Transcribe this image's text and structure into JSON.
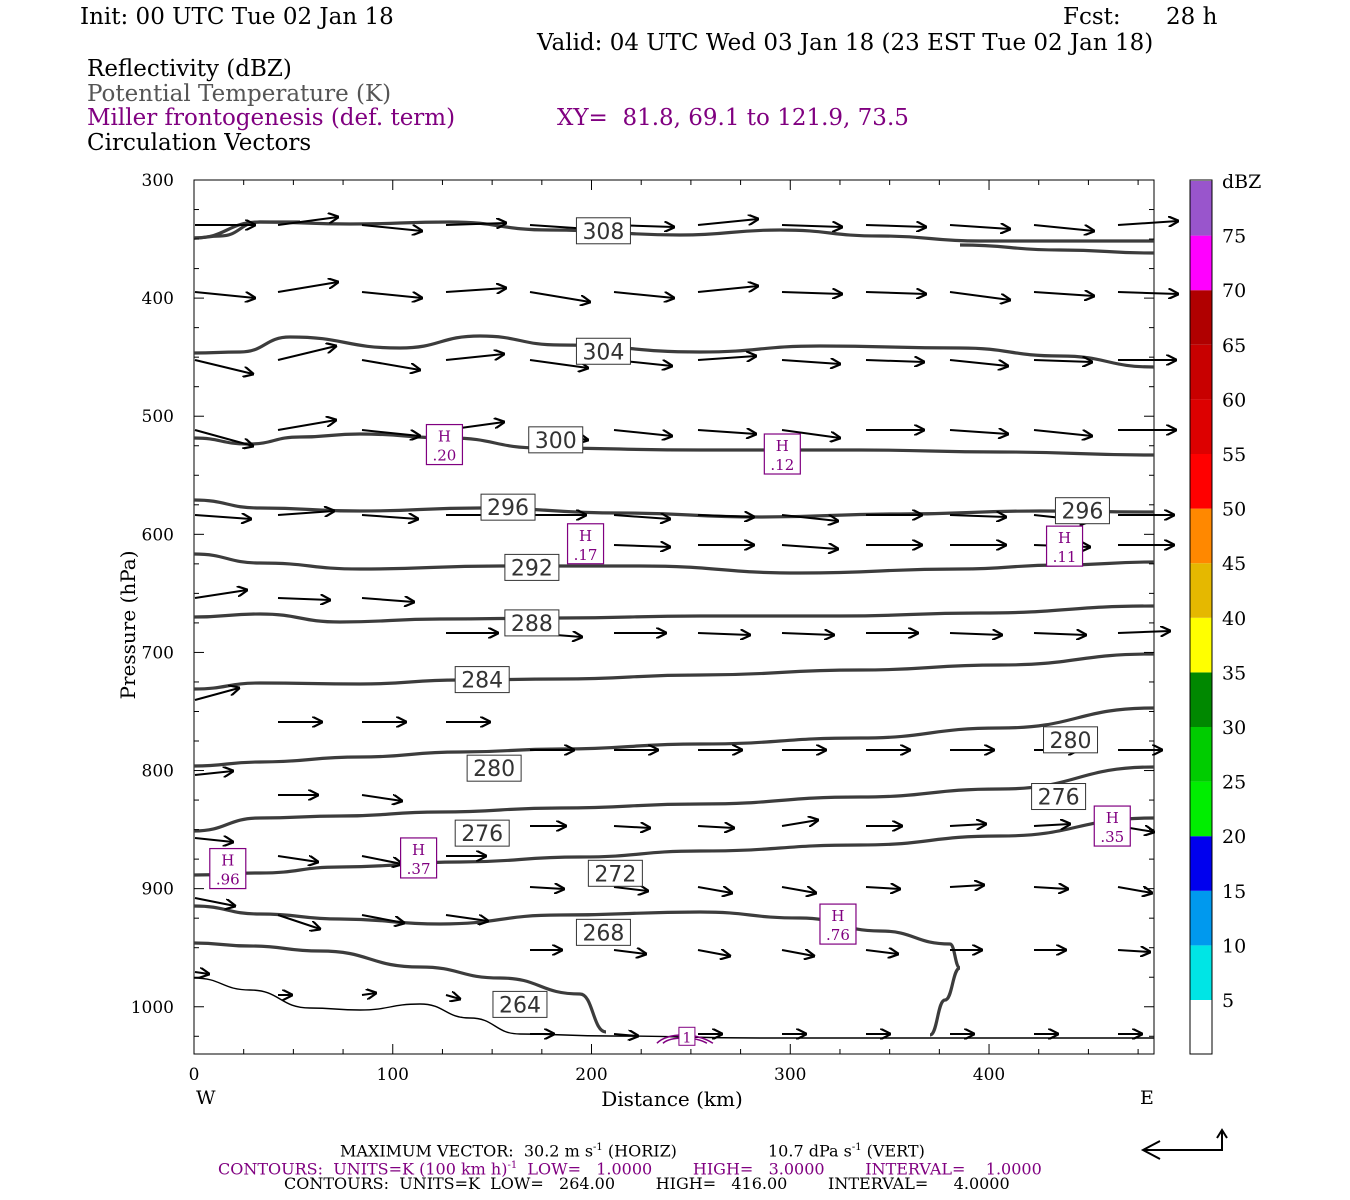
{
  "header": {
    "init": "Init: 00 UTC Tue 02 Jan 18",
    "fcst_label": "Fcst:",
    "fcst_value": "28 h",
    "valid": "Valid: 04 UTC Wed 03 Jan 18 (23 EST Tue 02 Jan 18)"
  },
  "legend_text": {
    "reflectivity": "Reflectivity (dBZ)",
    "theta": "Potential Temperature (K)",
    "frontogenesis": "Miller frontogenesis (def. term)",
    "xy": "XY=  81.8, 69.1 to 121.9, 73.5",
    "vectors": "Circulation Vectors"
  },
  "footer": {
    "max_vector": "MAXIMUM VECTOR:  30.2 m s",
    "max_vector_sup": "-1",
    "max_vector_horiz": " (HORIZ)",
    "max_vector_vert": "10.7 dPa s",
    "max_vector_vert_sup": "-1",
    "max_vector_vert_tail": " (VERT)",
    "contours1_a": "CONTOURS:  UNITS=K (100 km h)",
    "contours1_sup": "-1",
    "contours1_b": "  LOW=   1.0000        HIGH=   3.0000        INTERVAL=    1.0000",
    "contours2": "CONTOURS:  UNITS=K  LOW=   264.00        HIGH=   416.00        INTERVAL=     4.0000"
  },
  "colors": {
    "theta_line": "#3c3c3c",
    "fronto": "#800080"
  },
  "chart_data": {
    "type": "cross-section",
    "xlabel": "Distance (km)",
    "ylabel": "Pressure (hPa)",
    "xlim": [
      0,
      483
    ],
    "ylim": [
      1040,
      300
    ],
    "y_scale": "linear, inverted",
    "x_ticks": [
      "0",
      "100",
      "200",
      "300",
      "400"
    ],
    "y_ticks": [
      "300",
      "400",
      "500",
      "600",
      "700",
      "800",
      "900",
      "1000"
    ],
    "x_ends": {
      "left": "W",
      "right": "E"
    },
    "colorbar": {
      "unit": "dBZ",
      "labels": [
        "5",
        "10",
        "15",
        "20",
        "25",
        "30",
        "35",
        "40",
        "45",
        "50",
        "55",
        "60",
        "65",
        "70",
        "75"
      ],
      "colors": [
        "#00e5e5",
        "#0099ee",
        "#0000ee",
        "#00ee00",
        "#00cc00",
        "#008800",
        "#ffff00",
        "#e5b800",
        "#ff8800",
        "#ff0000",
        "#dd0000",
        "#c80000",
        "#b00000",
        "#ff00ff",
        "#9955cc"
      ]
    },
    "theta_labels": [
      {
        "text": "308",
        "x": 206,
        "p": 343
      },
      {
        "text": "304",
        "x": 206,
        "p": 445
      },
      {
        "text": "300",
        "x": 182,
        "p": 520
      },
      {
        "text": "296",
        "x": 158,
        "p": 577
      },
      {
        "text": "296",
        "x": 447,
        "p": 580
      },
      {
        "text": "292",
        "x": 170,
        "p": 628
      },
      {
        "text": "288",
        "x": 170,
        "p": 675
      },
      {
        "text": "284",
        "x": 145,
        "p": 723
      },
      {
        "text": "280",
        "x": 441,
        "p": 774
      },
      {
        "text": "280",
        "x": 151,
        "p": 798
      },
      {
        "text": "276",
        "x": 435,
        "p": 822
      },
      {
        "text": "276",
        "x": 145,
        "p": 853
      },
      {
        "text": "272",
        "x": 212,
        "p": 887
      },
      {
        "text": "268",
        "x": 206,
        "p": 937
      },
      {
        "text": "264",
        "x": 164,
        "p": 998
      }
    ],
    "fronto_maxima": [
      {
        "label": "H",
        "value": ".20",
        "x": 126,
        "p": 524
      },
      {
        "label": "H",
        "value": ".12",
        "x": 296,
        "p": 532
      },
      {
        "label": "H",
        "value": ".17",
        "x": 197,
        "p": 608
      },
      {
        "label": "H",
        "value": ".11",
        "x": 438,
        "p": 610
      },
      {
        "label": "H",
        "value": ".96",
        "x": 17,
        "p": 883
      },
      {
        "label": "H",
        "value": ".37",
        "x": 113,
        "p": 874
      },
      {
        "label": "H",
        "value": ".35",
        "x": 462,
        "p": 847
      },
      {
        "label": "H",
        "value": ".76",
        "x": 324,
        "p": 930
      },
      {
        "label": "",
        "value": "1",
        "x": 248,
        "p": 1025
      }
    ]
  }
}
